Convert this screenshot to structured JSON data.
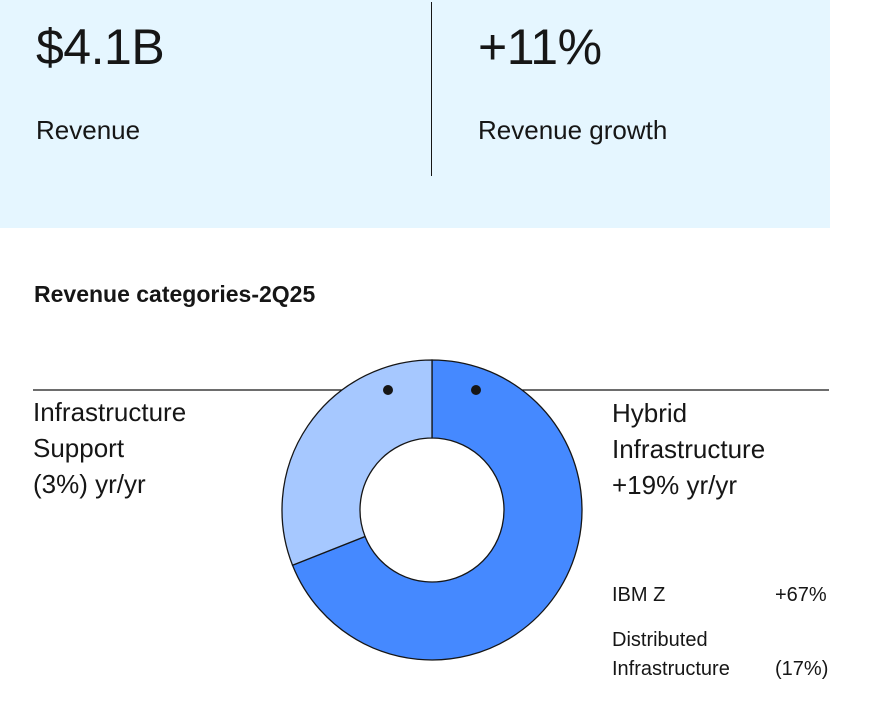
{
  "kpis": [
    {
      "value": "$4.1B",
      "label": "Revenue"
    },
    {
      "value": "+11%",
      "label": "Revenue growth"
    }
  ],
  "colors": {
    "panel_bg": "#e5f6ff",
    "hybrid": "#4589ff",
    "support": "#a6c8ff",
    "text": "#161616"
  },
  "chart_data": {
    "type": "pie",
    "variant": "donut",
    "title": "Revenue categories-2Q25",
    "slices": [
      {
        "name": "Hybrid Infrastructure",
        "share_percent": 69,
        "growth_label": "+19% yr/yr",
        "color": "#4589ff"
      },
      {
        "name": "Infrastructure Support",
        "share_percent": 31,
        "growth_label": "(3%) yr/yr",
        "color": "#a6c8ff"
      }
    ],
    "labels": {
      "left": "Infrastructure\nSupport\n(3%) yr/yr",
      "right": "Hybrid\nInfrastructure\n+19% yr/yr"
    },
    "breakdown": [
      {
        "name": "IBM Z",
        "growth": "+67%"
      },
      {
        "name_line1": "Distributed",
        "name_line2": "Infrastructure",
        "growth": "(17%)"
      }
    ]
  }
}
